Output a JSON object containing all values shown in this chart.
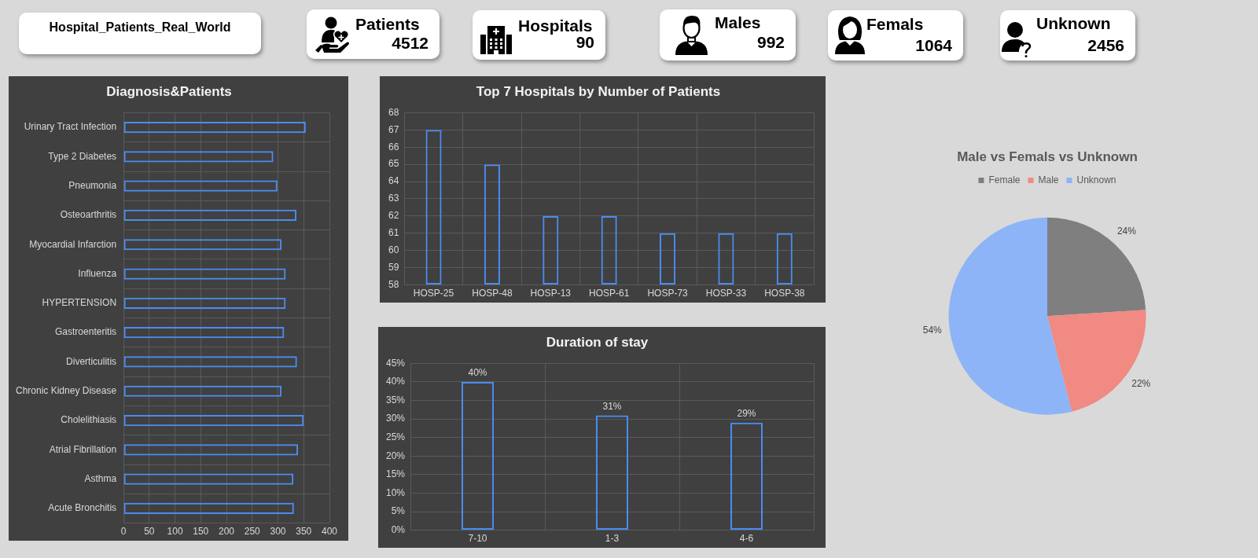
{
  "chart_data": [
    {
      "type": "other",
      "title": "Hospital_Patients_Real_World",
      "categories": [
        "Patients",
        "Hospitals",
        "Males",
        "Femals",
        "Unknown"
      ],
      "values": [
        4512,
        90,
        992,
        1064,
        2456
      ],
      "data_labels": true
    },
    {
      "type": "bar",
      "title": "Diagnosis&Patients",
      "orientation": "horizontal",
      "categories": [
        "Urinary Tract Infection",
        "Type 2 Diabetes",
        "Pneumonia",
        "Osteoarthritis",
        "Myocardial Infarction",
        "Influenza",
        "HYPERTENSION",
        "Gastroenteritis",
        "Diverticulitis",
        "Chronic Kidney Disease",
        "Cholelithiasis",
        "Atrial Fibrillation",
        "Asthma",
        "Acute Bronchitis"
      ],
      "values": [
        354,
        291,
        299,
        336,
        307,
        315,
        315,
        312,
        337,
        307,
        350,
        339,
        330,
        331
      ],
      "color": "#4a8cf0",
      "xlim": [
        0,
        400
      ],
      "xticks": [
        0,
        50,
        100,
        150,
        200,
        250,
        300,
        350,
        400
      ],
      "grid": true
    },
    {
      "type": "bar",
      "title": "Top 7 Hospitals by Number of Patients",
      "categories": [
        "HOSP-25",
        "HOSP-48",
        "HOSP-13",
        "HOSP-61",
        "HOSP-73",
        "HOSP-33",
        "HOSP-38"
      ],
      "values": [
        67,
        65,
        62,
        62,
        61,
        61,
        61
      ],
      "color": "#4a8cf0",
      "ylim": [
        58,
        68
      ],
      "yticks": [
        58,
        59,
        60,
        61,
        62,
        63,
        64,
        65,
        66,
        67,
        68
      ],
      "grid": true
    },
    {
      "type": "bar",
      "title": "Duration of stay",
      "categories": [
        "7-10",
        "1-3",
        "4-6"
      ],
      "values": [
        40,
        31,
        29
      ],
      "color": "#4a8cf0",
      "ylim": [
        0,
        45
      ],
      "yticks": [
        {
          "value": 0,
          "label": "0%"
        },
        {
          "value": 5,
          "label": "5%"
        },
        {
          "value": 10,
          "label": "10%"
        },
        {
          "value": 15,
          "label": "15%"
        },
        {
          "value": 20,
          "label": "20%"
        },
        {
          "value": 25,
          "label": "25%"
        },
        {
          "value": 30,
          "label": "30%"
        },
        {
          "value": 35,
          "label": "35%"
        },
        {
          "value": 40,
          "label": "40%"
        },
        {
          "value": 45,
          "label": "45%"
        }
      ],
      "grid": true,
      "value_labels": [
        "40%",
        "31%",
        "29%"
      ]
    },
    {
      "type": "pie",
      "title": "Male vs Femals vs Unknown",
      "categories": [
        "Female",
        "Male",
        "Unknown"
      ],
      "values": [
        24,
        22,
        54
      ],
      "colors": [
        "#7f7f7f",
        "#f08a82",
        "#8db4f7"
      ],
      "legend": "top",
      "value_labels": [
        "24%",
        "22%",
        "54%"
      ]
    }
  ]
}
